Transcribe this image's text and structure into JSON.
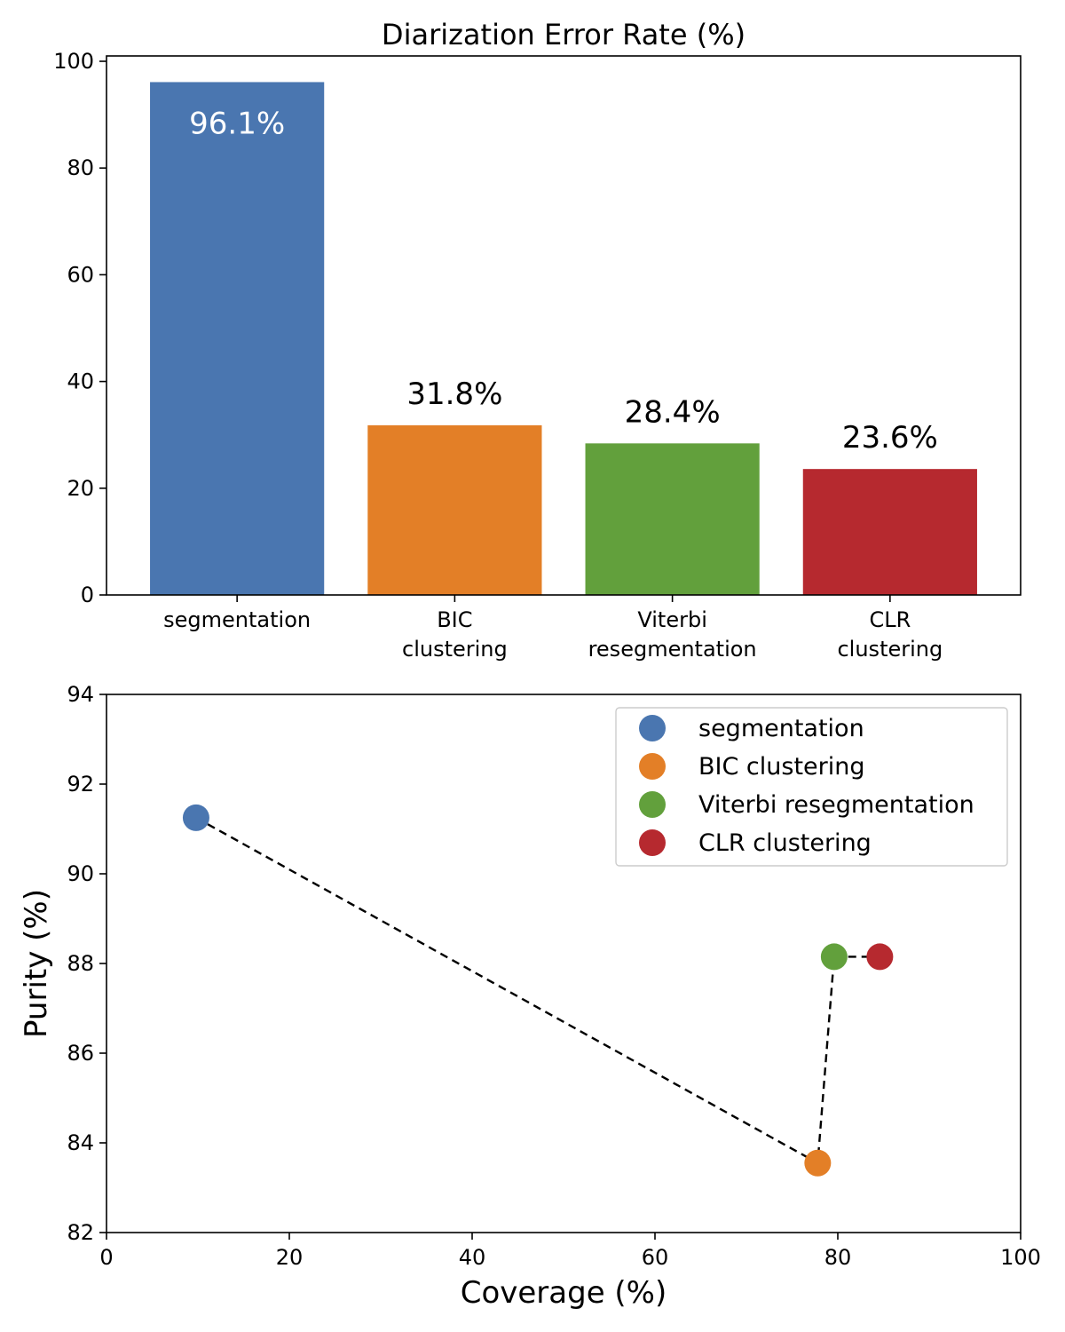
{
  "chart_data": [
    {
      "type": "bar",
      "title": "Diarization Error Rate (%)",
      "xlabel": "",
      "ylabel": "",
      "categories": [
        [
          "segmentation"
        ],
        [
          "BIC",
          "clustering"
        ],
        [
          "Viterbi",
          "resegmentation"
        ],
        [
          "CLR",
          "clustering"
        ]
      ],
      "values": [
        96.1,
        31.8,
        28.4,
        23.6
      ],
      "value_labels": [
        "96.1%",
        "31.8%",
        "28.4%",
        "23.6%"
      ],
      "colors": [
        "#4a76b0",
        "#e37f27",
        "#62a03c",
        "#b6292f"
      ],
      "value_label_colors": [
        "#ffffff",
        "#000000",
        "#000000",
        "#000000"
      ],
      "value_label_inside": [
        true,
        false,
        false,
        false
      ],
      "ylim": [
        0,
        100
      ],
      "yticks": [
        0,
        20,
        40,
        60,
        80,
        100
      ]
    },
    {
      "type": "scatter",
      "title": "",
      "xlabel": "Coverage (%)",
      "ylabel": "Purity (%)",
      "series": [
        {
          "name": "segmentation",
          "x": 9.8,
          "y": 91.25,
          "color": "#4a76b0"
        },
        {
          "name": "BIC clustering",
          "x": 77.8,
          "y": 83.55,
          "color": "#e37f27"
        },
        {
          "name": "Viterbi resegmentation",
          "x": 79.6,
          "y": 88.15,
          "color": "#62a03c"
        },
        {
          "name": "CLR clustering",
          "x": 84.6,
          "y": 88.15,
          "color": "#b6292f"
        }
      ],
      "connecting_line": "dashed",
      "xlim": [
        0,
        100
      ],
      "ylim": [
        82,
        94
      ],
      "xticks": [
        0,
        20,
        40,
        60,
        80,
        100
      ],
      "yticks": [
        82,
        84,
        86,
        88,
        90,
        92,
        94
      ],
      "legend_position": "top-right"
    }
  ]
}
